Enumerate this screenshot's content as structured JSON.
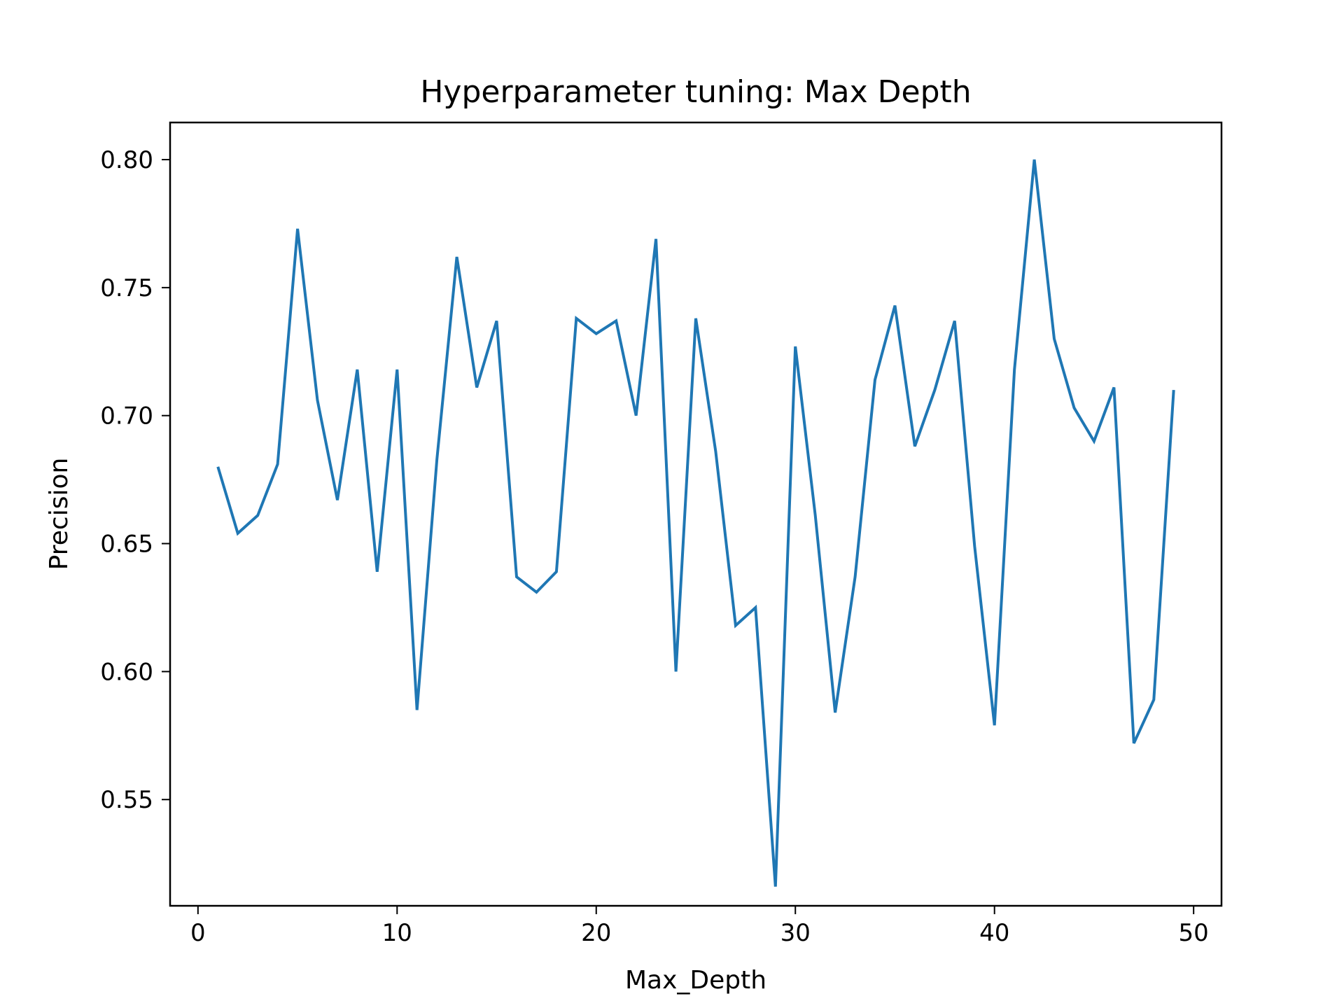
{
  "chart_data": {
    "type": "line",
    "title": "Hyperparameter tuning: Max Depth",
    "xlabel": "Max_Depth",
    "ylabel": "Precision",
    "xlim": [
      -1.4,
      51.4
    ],
    "ylim": [
      0.5085,
      0.8145
    ],
    "x_ticks": [
      0,
      10,
      20,
      30,
      40,
      50
    ],
    "x_tick_labels": [
      "0",
      "10",
      "20",
      "30",
      "40",
      "50"
    ],
    "y_ticks": [
      0.55,
      0.6,
      0.65,
      0.7,
      0.75,
      0.8
    ],
    "y_tick_labels": [
      "0.55",
      "0.60",
      "0.65",
      "0.70",
      "0.75",
      "0.80"
    ],
    "grid": false,
    "legend": "none",
    "series": [
      {
        "color": "#1f77b4",
        "x": [
          1,
          2,
          3,
          4,
          5,
          6,
          7,
          8,
          9,
          10,
          11,
          12,
          13,
          14,
          15,
          16,
          17,
          18,
          19,
          20,
          21,
          22,
          23,
          24,
          25,
          26,
          27,
          28,
          29,
          30,
          31,
          32,
          33,
          34,
          35,
          36,
          37,
          38,
          39,
          40,
          41,
          42,
          43,
          44,
          45,
          46,
          47,
          48,
          49
        ],
        "values": [
          0.68,
          0.654,
          0.661,
          0.681,
          0.773,
          0.706,
          0.667,
          0.718,
          0.639,
          0.718,
          0.585,
          0.683,
          0.762,
          0.711,
          0.737,
          0.637,
          0.631,
          0.639,
          0.738,
          0.732,
          0.737,
          0.7,
          0.769,
          0.6,
          0.738,
          0.686,
          0.618,
          0.625,
          0.516,
          0.727,
          0.661,
          0.584,
          0.637,
          0.714,
          0.743,
          0.688,
          0.71,
          0.737,
          0.649,
          0.579,
          0.718,
          0.8,
          0.73,
          0.703,
          0.69,
          0.711,
          0.572,
          0.589,
          0.71
        ]
      }
    ]
  }
}
